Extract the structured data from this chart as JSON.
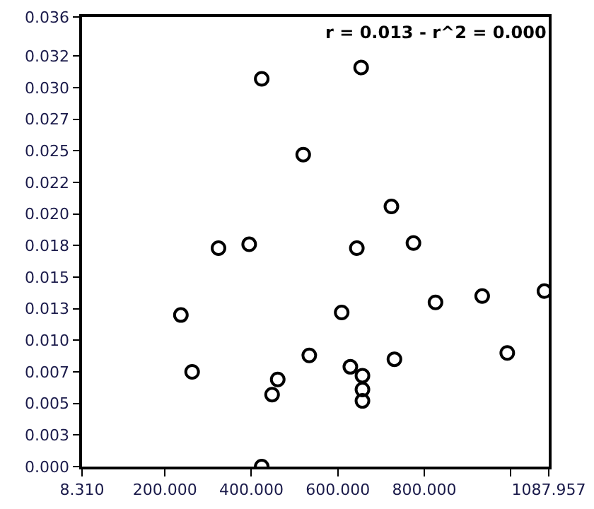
{
  "chart_data": {
    "type": "scatter",
    "marker": "circle",
    "grid": false,
    "annotations": [
      "r = 0.013 - r^2 = 0.000"
    ],
    "x": [
      424,
      654,
      520,
      724,
      775,
      644,
      324,
      395,
      237,
      263,
      461,
      448,
      424,
      609,
      826,
      934,
      1078,
      534,
      629,
      657,
      657,
      657,
      731,
      992
    ],
    "series": [
      {
        "color": "#000000",
        "values": [
          0.0307,
          0.0316,
          0.0247,
          0.0206,
          0.0177,
          0.0173,
          0.0173,
          0.0176,
          0.012,
          0.0075,
          0.0069,
          0.0057,
          0.0,
          0.0122,
          0.013,
          0.0135,
          0.0139,
          0.0088,
          0.0079,
          0.0072,
          0.0061,
          0.0052,
          0.0085,
          0.009
        ]
      }
    ],
    "xlim": [
      8.31,
      1087.957
    ],
    "xticks": [
      {
        "value": 8.31,
        "label": "8.310"
      },
      {
        "value": 200,
        "label": "200.000"
      },
      {
        "value": 400,
        "label": "400.000"
      },
      {
        "value": 600,
        "label": "600.000"
      },
      {
        "value": 800,
        "label": "800.000"
      },
      {
        "value": 1000,
        "label": null
      },
      {
        "value": 1087.957,
        "label": "1087.957"
      }
    ],
    "ylim": [
      0,
      0.0356
    ],
    "yticks": [
      {
        "value": 0,
        "label": "0.000"
      },
      {
        "value": 0.0025,
        "label": "0.003"
      },
      {
        "value": 0.005,
        "label": "0.005"
      },
      {
        "value": 0.0075,
        "label": "0.007"
      },
      {
        "value": 0.01,
        "label": "0.010"
      },
      {
        "value": 0.0125,
        "label": "0.013"
      },
      {
        "value": 0.015,
        "label": "0.015"
      },
      {
        "value": 0.0175,
        "label": "0.018"
      },
      {
        "value": 0.02,
        "label": "0.020"
      },
      {
        "value": 0.0225,
        "label": "0.022"
      },
      {
        "value": 0.025,
        "label": "0.025"
      },
      {
        "value": 0.0275,
        "label": "0.027"
      },
      {
        "value": 0.03,
        "label": "0.030"
      },
      {
        "value": 0.0325,
        "label": "0.032"
      },
      {
        "value": 0.0356,
        "label": "0.036"
      }
    ]
  }
}
